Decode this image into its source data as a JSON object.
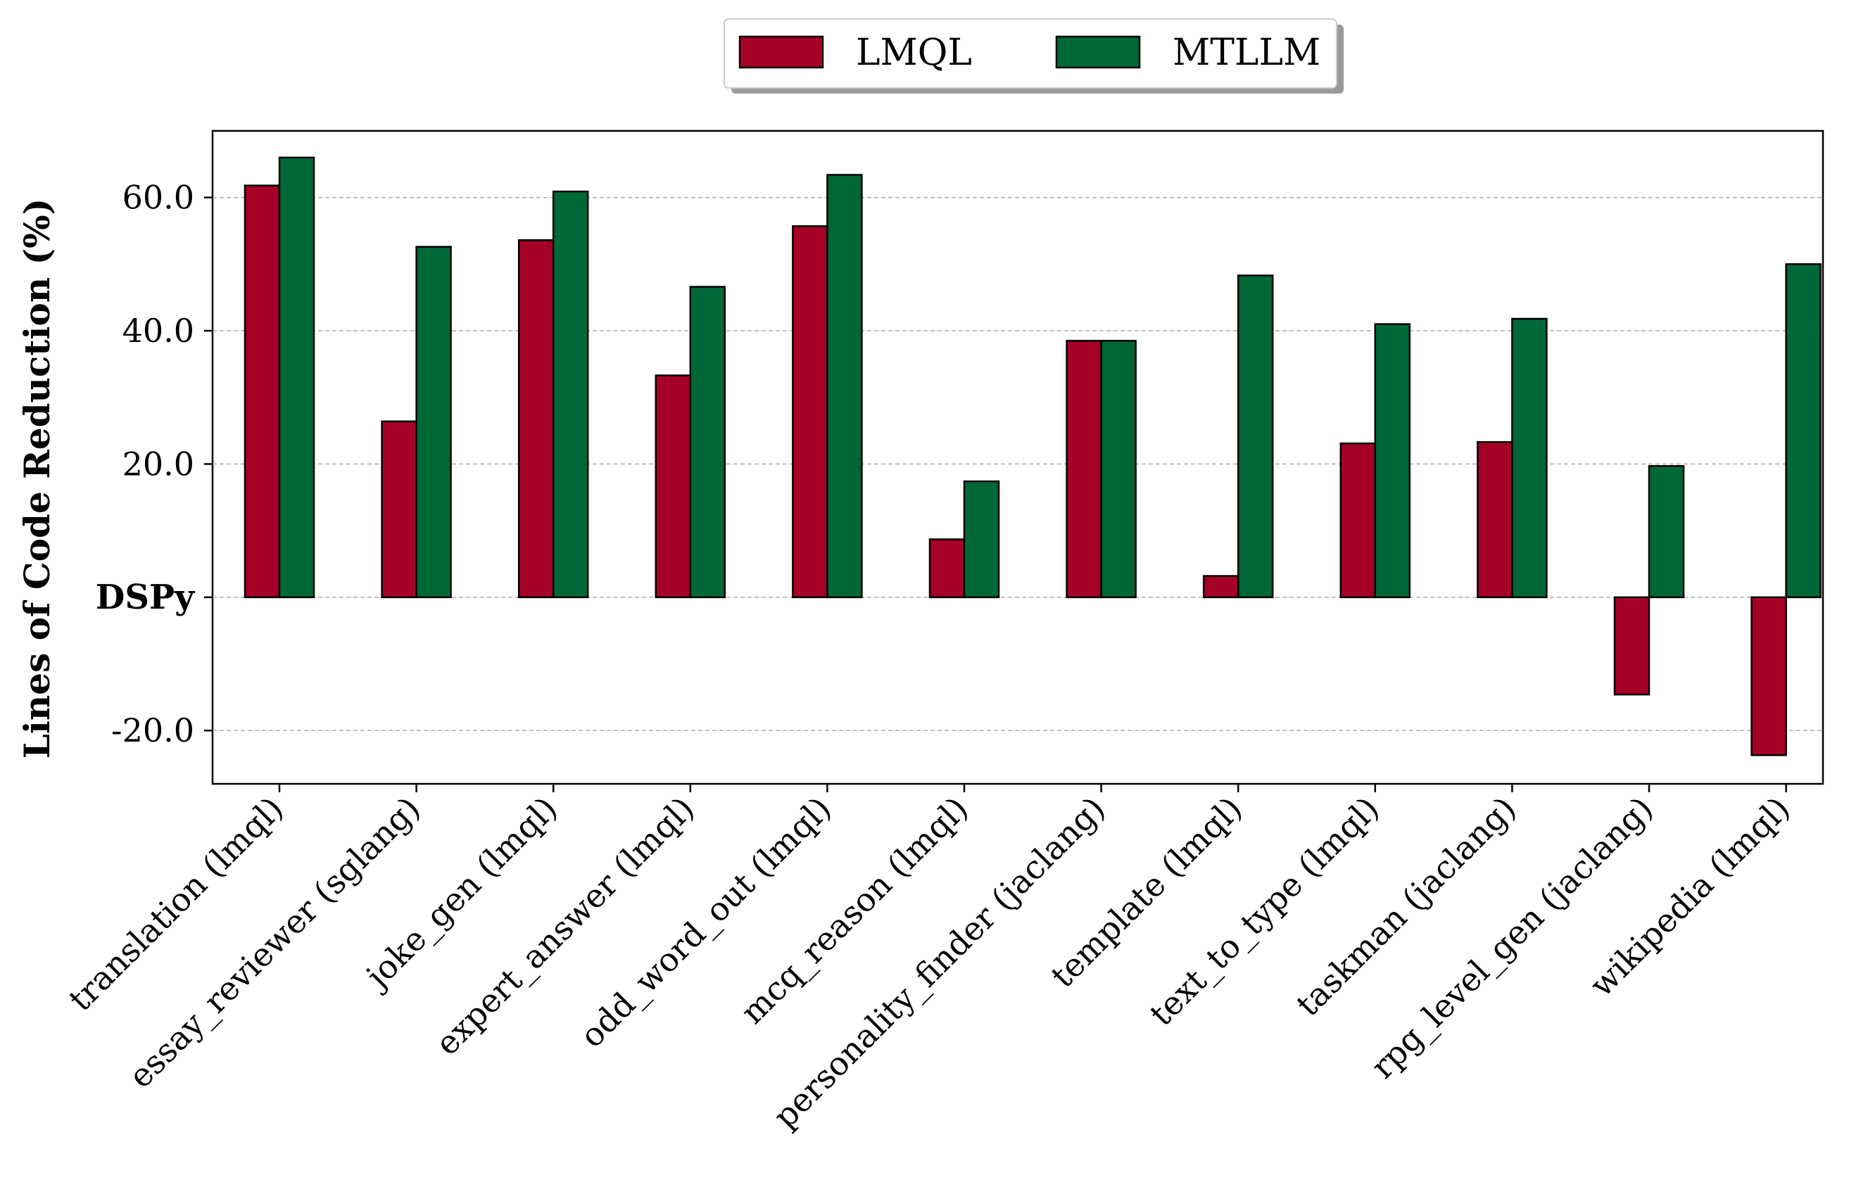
{
  "chart_data": {
    "type": "bar",
    "categories": [
      "translation (lmql)",
      "essay_reviewer (sglang)",
      "joke_gen (lmql)",
      "expert_answer (lmql)",
      "odd_word_out (lmql)",
      "mcq_reason (lmql)",
      "personality_finder (jaclang)",
      "template (lmql)",
      "text_to_type (lmql)",
      "taskman (jaclang)",
      "rpg_level_gen (jaclang)",
      "wikipedia (lmql)"
    ],
    "series": [
      {
        "name": "LMQL",
        "color": "#a50026",
        "values": [
          61.8,
          26.4,
          53.6,
          33.3,
          55.7,
          8.7,
          38.5,
          3.2,
          23.1,
          23.3,
          -14.6,
          -23.7
        ]
      },
      {
        "name": "MTLLM",
        "color": "#006837",
        "values": [
          66.0,
          52.6,
          60.9,
          46.6,
          63.4,
          17.4,
          38.5,
          48.3,
          41.0,
          41.8,
          19.7,
          50.0
        ]
      }
    ],
    "title": "",
    "xlabel": "",
    "ylabel": "Lines of Code Reduction (%)",
    "ylim": [
      -28,
      70
    ],
    "yticks": [
      -20,
      0,
      20,
      40,
      60
    ],
    "ytick_labels": [
      "-20.0",
      "DSPy",
      "20.0",
      "40.0",
      "60.0"
    ],
    "grid": "horizontal dashed",
    "legend_position": "top-center, above plot"
  }
}
